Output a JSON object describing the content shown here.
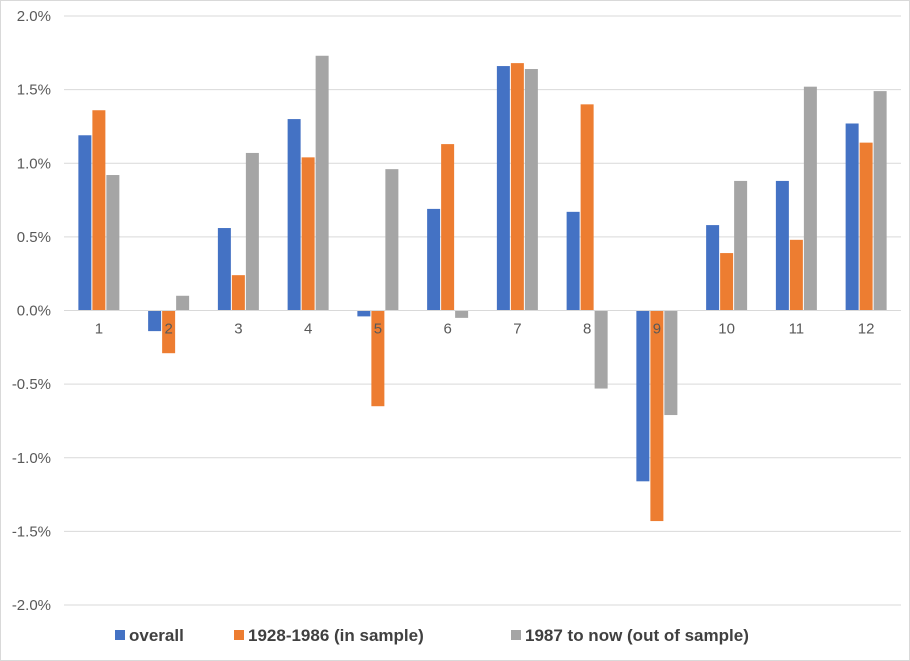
{
  "chart_data": {
    "type": "bar",
    "title": "",
    "xlabel": "",
    "ylabel": "",
    "categories": [
      "1",
      "2",
      "3",
      "4",
      "5",
      "6",
      "7",
      "8",
      "9",
      "10",
      "11",
      "12"
    ],
    "series": [
      {
        "name": "overall",
        "color": "#4472c4",
        "values": [
          1.19,
          -0.14,
          0.56,
          1.3,
          -0.04,
          0.69,
          1.66,
          0.67,
          -1.16,
          0.58,
          0.88,
          1.27
        ]
      },
      {
        "name": "1928-1986 (in sample)",
        "color": "#ed7d31",
        "values": [
          1.36,
          -0.29,
          0.24,
          1.04,
          -0.65,
          1.13,
          1.68,
          1.4,
          -1.43,
          0.39,
          0.48,
          1.14
        ]
      },
      {
        "name": "1987 to now (out of sample)",
        "color": "#a5a5a5",
        "values": [
          0.92,
          0.1,
          1.07,
          1.73,
          0.96,
          -0.05,
          1.64,
          -0.53,
          -0.71,
          0.88,
          1.52,
          1.49
        ]
      }
    ],
    "ylim": [
      -2.0,
      2.0
    ],
    "yticks": [
      "2.0%",
      "1.5%",
      "1.0%",
      "0.5%",
      "0.0%",
      "-0.5%",
      "-1.0%",
      "-1.5%",
      "-2.0%"
    ],
    "ytick_values": [
      2.0,
      1.5,
      1.0,
      0.5,
      0.0,
      -0.5,
      -1.0,
      -1.5,
      -2.0
    ],
    "grid": true,
    "legend_position": "bottom"
  }
}
